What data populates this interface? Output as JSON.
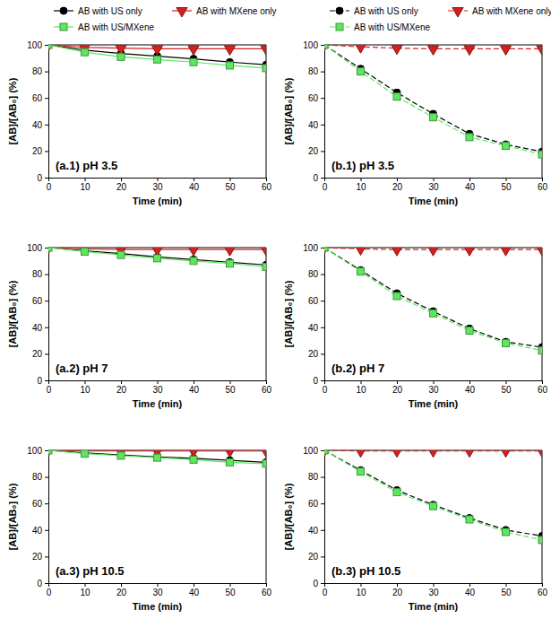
{
  "chart_data": [
    {
      "type": "line",
      "title": "(a.1) pH 3.5",
      "xlabel": "Time (min)",
      "ylabel": "[AB]/[AB₀] (%)",
      "x": [
        0,
        10,
        20,
        30,
        40,
        50,
        60
      ],
      "xlim": [
        0,
        60
      ],
      "xticks": [
        0,
        10,
        20,
        30,
        40,
        50,
        60
      ],
      "ylim": [
        0,
        100
      ],
      "yticks": [
        0,
        20,
        40,
        60,
        80,
        100
      ],
      "grid": false,
      "legend": "top",
      "series": [
        {
          "name": "AB with US only",
          "color": "#000000",
          "marker": "circle",
          "line_style": "solid",
          "values": [
            100,
            96,
            93.5,
            91.5,
            89.5,
            87,
            85
          ]
        },
        {
          "name": "AB with MXene only",
          "color": "#d42020",
          "marker": "triangle-down",
          "line_style": "solid",
          "values": [
            100,
            98,
            97.5,
            97,
            97,
            97,
            97
          ]
        },
        {
          "name": "AB with US/MXene",
          "color": "#5ee65e",
          "marker": "square",
          "line_style": "solid",
          "values": [
            100,
            94.5,
            91,
            89,
            87,
            84.5,
            82.5
          ]
        }
      ]
    },
    {
      "type": "line",
      "title": "(a.2) pH 7",
      "xlabel": "Time (min)",
      "ylabel": "[AB]/[AB₀] (%)",
      "x": [
        0,
        10,
        20,
        30,
        40,
        50,
        60
      ],
      "xlim": [
        0,
        60
      ],
      "xticks": [
        0,
        10,
        20,
        30,
        40,
        50,
        60
      ],
      "ylim": [
        0,
        100
      ],
      "yticks": [
        0,
        20,
        40,
        60,
        80,
        100
      ],
      "grid": false,
      "series": [
        {
          "color": "#000000",
          "marker": "circle",
          "line_style": "solid",
          "values": [
            100,
            97.5,
            95.5,
            93,
            91,
            89,
            87
          ]
        },
        {
          "color": "#d42020",
          "marker": "triangle-down",
          "line_style": "solid",
          "values": [
            100,
            99,
            98.5,
            98.5,
            98.5,
            98.5,
            98.5
          ]
        },
        {
          "color": "#5ee65e",
          "marker": "square",
          "line_style": "solid",
          "values": [
            100,
            97,
            94.5,
            92,
            90,
            88,
            85.5
          ]
        }
      ]
    },
    {
      "type": "line",
      "title": "(a.3) pH 10.5",
      "xlabel": "Time (min)",
      "ylabel": "[AB]/[AB₀] (%)",
      "x": [
        0,
        10,
        20,
        30,
        40,
        50,
        60
      ],
      "xlim": [
        0,
        60
      ],
      "xticks": [
        0,
        10,
        20,
        30,
        40,
        50,
        60
      ],
      "ylim": [
        0,
        100
      ],
      "yticks": [
        0,
        20,
        40,
        60,
        80,
        100
      ],
      "grid": false,
      "series": [
        {
          "color": "#000000",
          "marker": "circle",
          "line_style": "solid",
          "values": [
            100,
            98,
            96.5,
            95,
            94,
            92.5,
            91
          ]
        },
        {
          "color": "#d42020",
          "marker": "triangle-down",
          "line_style": "solid",
          "values": [
            100,
            99.5,
            99.5,
            99.5,
            99.5,
            99.5,
            99.5
          ]
        },
        {
          "color": "#5ee65e",
          "marker": "square",
          "line_style": "solid",
          "values": [
            100,
            97.5,
            96,
            94.5,
            93,
            91,
            90
          ]
        }
      ]
    },
    {
      "type": "line",
      "title": "(b.1) pH 3.5",
      "xlabel": "Time (min)",
      "ylabel": "[AB]/[AB₀] (%)",
      "x": [
        0,
        10,
        20,
        30,
        40,
        50,
        60
      ],
      "xlim": [
        0,
        60
      ],
      "xticks": [
        0,
        10,
        20,
        30,
        40,
        50,
        60
      ],
      "ylim": [
        0,
        100
      ],
      "yticks": [
        0,
        20,
        40,
        60,
        80,
        100
      ],
      "grid": false,
      "legend": "top",
      "series": [
        {
          "name": "AB with US only",
          "color": "#000000",
          "marker": "circle",
          "line_style": "dashed",
          "values": [
            100,
            82,
            64,
            48,
            33,
            25,
            19.5
          ],
          "errors": [
            0,
            2,
            2.5,
            2,
            1.5,
            1.5,
            1.5
          ]
        },
        {
          "name": "AB with MXene only",
          "color": "#d42020",
          "marker": "triangle-down",
          "line_style": "dashed",
          "values": [
            100,
            98.5,
            97.5,
            97,
            97,
            97,
            97
          ],
          "errors": [
            0,
            0.8,
            0.8,
            0.8,
            0.8,
            0.8,
            0.8
          ]
        },
        {
          "name": "AB with US/MXene",
          "color": "#5ee65e",
          "marker": "square",
          "line_style": "dashed",
          "values": [
            100,
            80,
            61,
            45.5,
            30.5,
            24,
            17.5
          ],
          "errors": [
            0,
            2,
            2.5,
            2,
            1.5,
            1.5,
            1.5
          ]
        }
      ]
    },
    {
      "type": "line",
      "title": "(b.2) pH 7",
      "xlabel": "Time (min)",
      "ylabel": "[AB]/[AB₀] (%)",
      "x": [
        0,
        10,
        20,
        30,
        40,
        50,
        60
      ],
      "xlim": [
        0,
        60
      ],
      "xticks": [
        0,
        10,
        20,
        30,
        40,
        50,
        60
      ],
      "ylim": [
        0,
        100
      ],
      "yticks": [
        0,
        20,
        40,
        60,
        80,
        100
      ],
      "grid": false,
      "series": [
        {
          "color": "#000000",
          "marker": "circle",
          "line_style": "dashed",
          "values": [
            100,
            83,
            65.5,
            52,
            39,
            29,
            25
          ],
          "errors": [
            0,
            2,
            2,
            2,
            1.5,
            1.5,
            1.5
          ]
        },
        {
          "color": "#d42020",
          "marker": "triangle-down",
          "line_style": "dashed",
          "values": [
            100,
            99,
            98.5,
            98.5,
            98.5,
            98.5,
            98.5
          ],
          "errors": [
            0,
            0.8,
            0.8,
            0.8,
            0.8,
            0.8,
            0.8
          ]
        },
        {
          "color": "#5ee65e",
          "marker": "square",
          "line_style": "dashed",
          "values": [
            100,
            82,
            63.5,
            50.5,
            37.5,
            28,
            22.5
          ],
          "errors": [
            0,
            2,
            2,
            2,
            1.5,
            1.5,
            1.5
          ]
        }
      ]
    },
    {
      "type": "line",
      "title": "(b.3) pH 10.5",
      "xlabel": "Time (min)",
      "ylabel": "[AB]/[AB₀] (%)",
      "x": [
        0,
        10,
        20,
        30,
        40,
        50,
        60
      ],
      "xlim": [
        0,
        60
      ],
      "xticks": [
        0,
        10,
        20,
        30,
        40,
        50,
        60
      ],
      "ylim": [
        0,
        100
      ],
      "yticks": [
        0,
        20,
        40,
        60,
        80,
        100
      ],
      "grid": false,
      "series": [
        {
          "color": "#000000",
          "marker": "circle",
          "line_style": "dashed",
          "values": [
            100,
            85,
            70,
            59,
            49,
            40,
            35.5
          ],
          "errors": [
            0,
            2,
            2,
            1.5,
            1.5,
            1.5,
            1.5
          ]
        },
        {
          "color": "#d42020",
          "marker": "triangle-down",
          "line_style": "dashed",
          "values": [
            100,
            99.5,
            99.5,
            99.5,
            99.5,
            99.5,
            99.5
          ],
          "errors": [
            0,
            0.5,
            0.5,
            0.5,
            0.5,
            0.5,
            0.5
          ]
        },
        {
          "color": "#5ee65e",
          "marker": "square",
          "line_style": "dashed",
          "values": [
            100,
            84,
            68.5,
            58,
            48,
            38.5,
            32.5
          ],
          "errors": [
            0,
            2,
            2,
            1.5,
            1.5,
            1.5,
            1.5
          ]
        }
      ]
    }
  ]
}
